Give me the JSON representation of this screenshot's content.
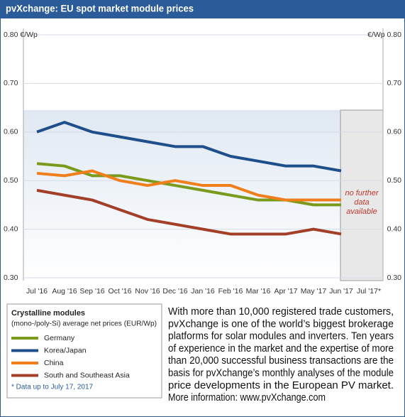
{
  "chart_data": {
    "type": "line",
    "title": "pvXchange: EU spot market module prices",
    "categories": [
      "Jul '16",
      "Aug '16",
      "Sep '16",
      "Oct '16",
      "Nov '16",
      "Dec '16",
      "Jan '16",
      "Feb '16",
      "Mar '16",
      "Apr '17",
      "May '17",
      "Jun '17",
      "Jul '17*"
    ],
    "series": [
      {
        "name": "Germany",
        "color": "#7a9a1c",
        "values": [
          0.535,
          0.53,
          0.51,
          0.51,
          0.5,
          0.49,
          0.48,
          0.47,
          0.46,
          0.46,
          0.45,
          0.45,
          null
        ]
      },
      {
        "name": "Korea/Japan",
        "color": "#1f4f8a",
        "values": [
          0.6,
          0.62,
          0.6,
          0.59,
          0.58,
          0.57,
          0.57,
          0.55,
          0.54,
          0.53,
          0.53,
          0.52,
          null
        ]
      },
      {
        "name": "China",
        "color": "#f07e1b",
        "values": [
          0.515,
          0.51,
          0.52,
          0.5,
          0.49,
          0.5,
          0.49,
          0.49,
          0.47,
          0.46,
          0.46,
          0.46,
          null
        ]
      },
      {
        "name": "South and Southeast Asia",
        "color": "#a33f28",
        "values": [
          0.48,
          0.47,
          0.46,
          0.44,
          0.42,
          0.41,
          0.4,
          0.39,
          0.39,
          0.39,
          0.4,
          0.39,
          null
        ]
      }
    ],
    "ylim": [
      0.3,
      0.8
    ],
    "yticks": [
      {
        "value": 0.3,
        "label": "0.30"
      },
      {
        "value": 0.4,
        "label": "0.40"
      },
      {
        "value": 0.5,
        "label": "0.50"
      },
      {
        "value": 0.6,
        "label": "0.60"
      },
      {
        "value": 0.7,
        "label": "0.70"
      },
      {
        "value": 0.8,
        "label": "0.80 €/Wp"
      }
    ],
    "y2lim": [
      0.3,
      0.8
    ],
    "y2ticks": [
      {
        "value": 0.3,
        "label": "0.30"
      },
      {
        "value": 0.4,
        "label": "0.40"
      },
      {
        "value": 0.5,
        "label": "0.50"
      },
      {
        "value": 0.6,
        "label": "0.60"
      },
      {
        "value": 0.7,
        "label": "0.70"
      },
      {
        "value": 0.8,
        "label": "€/Wp 0.80"
      }
    ],
    "grid": true,
    "annotation": [
      "no further",
      "data",
      "available"
    ],
    "legend_title": "Crystalline modules",
    "legend_subtitle": "(mono-/poly-Si) average net prices (EUR/Wp)",
    "footnote": "* Data up to July 17, 2017",
    "text": [
      "With more than 10,000 registered trade customers,",
      "pvXchange is one of the world’s biggest brokerage",
      "platforms for solar modules and inverters. Ten years",
      "of experience in the market and the expertise of more",
      "than 20,000 successful business transactions are the",
      "basis for pvXchange’s monthly analyses of the module",
      "price developments in the European PV market.",
      "More information: www.pvXchange.com"
    ]
  }
}
